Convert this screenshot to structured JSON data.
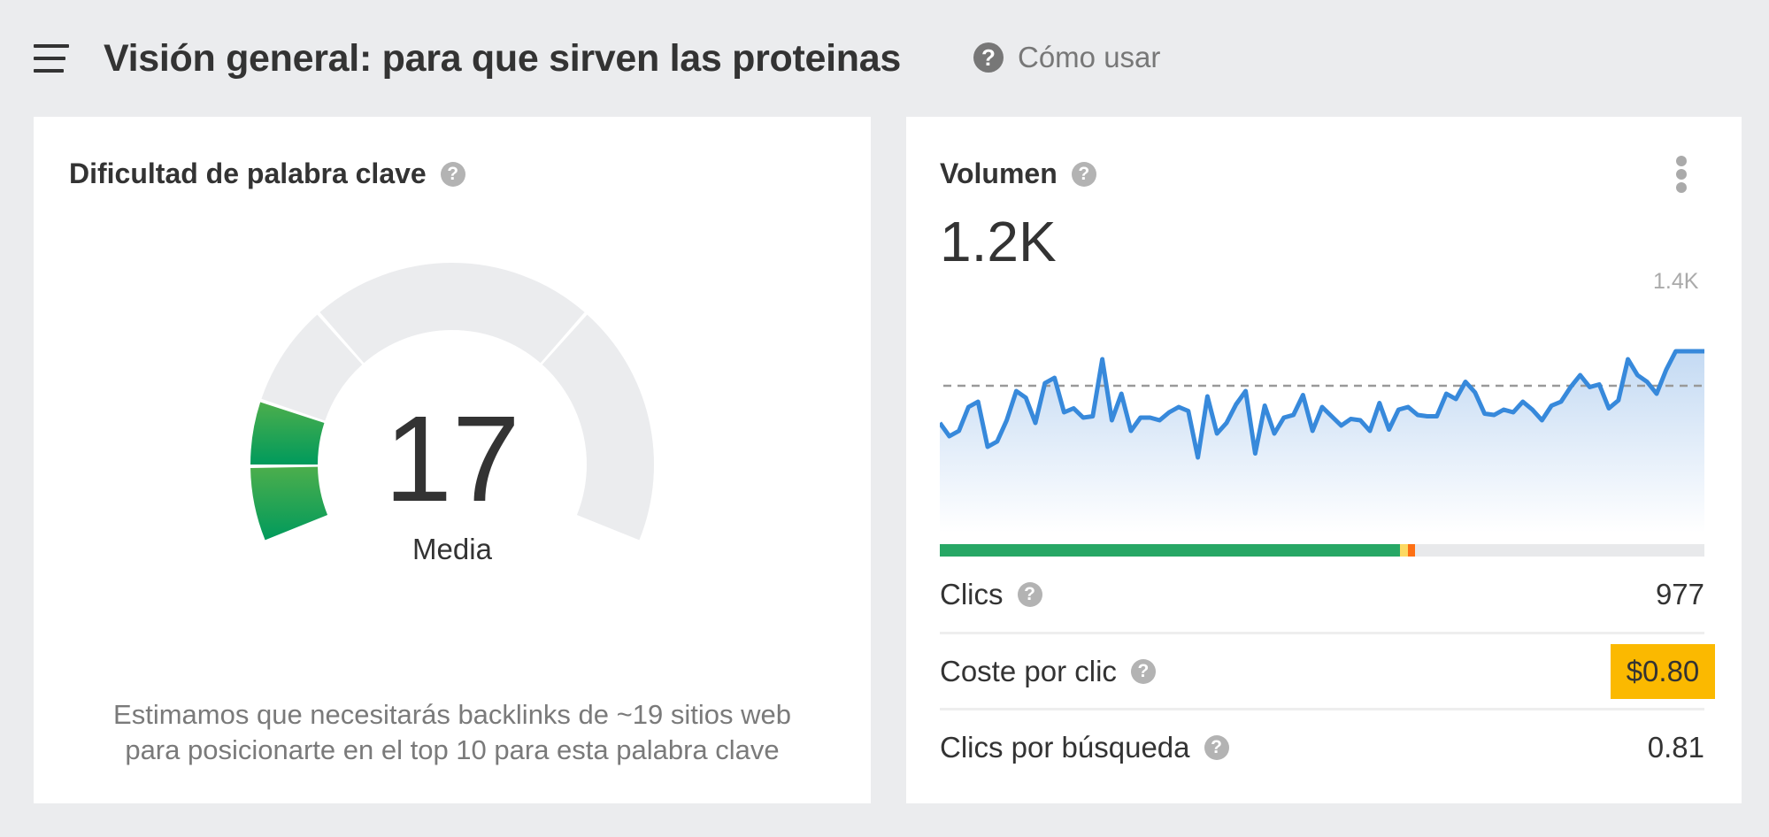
{
  "header": {
    "menu_icon": "hamburger-icon",
    "title": "Visión general: para que sirven las proteinas",
    "help_icon": "question-circle-icon",
    "help_label": "Cómo usar"
  },
  "difficulty_card": {
    "title": "Dificultad de palabra clave",
    "help_icon": "question-circle-icon",
    "score": "17",
    "score_label": "Media",
    "note_line1": "Estimamos que necesitarás backlinks de ~19 sitios web",
    "note_line2": "para posicionarte en el top 10 para esta palabra clave",
    "colors": {
      "filled_top": "#4cae4c",
      "filled_bottom": "#009a5c",
      "empty": "#ebecee"
    }
  },
  "volume_card": {
    "title": "Volumen",
    "help_icon": "question-circle-icon",
    "more_icon": "more-vertical-icon",
    "volume": "1.2K",
    "axis_max_label": "1.4K",
    "click_bar": {
      "segments": [
        {
          "name": "organic-clicks",
          "color": "#27a765",
          "percent": 60.2
        },
        {
          "name": "yellow-segment",
          "color": "#fcd962",
          "percent": 1.0
        },
        {
          "name": "orange-segment",
          "color": "#fd7014",
          "percent": 1.0
        }
      ],
      "background": "#e8e9eb"
    },
    "metrics": [
      {
        "label": "Clics",
        "value": "977",
        "has_help": true,
        "highlight": false
      },
      {
        "label": "Coste por clic",
        "value": "$0.80",
        "has_help": true,
        "highlight": true,
        "highlight_color": "#fbb900"
      },
      {
        "label": "Clics por búsqueda",
        "value": "0.81",
        "has_help": true,
        "highlight": false
      }
    ]
  },
  "chart_data": {
    "type": "area",
    "title": "Volumen",
    "xlabel": "",
    "ylabel": "",
    "y_tick_labels": [
      "1.4K"
    ],
    "reference_line": {
      "style": "dashed",
      "approx_value": 1200
    },
    "ylim": [
      0,
      1400
    ],
    "grid": false,
    "line_color": "#3789db",
    "values": [
      760,
      660,
      700,
      880,
      920,
      580,
      620,
      780,
      1000,
      950,
      760,
      1060,
      1100,
      840,
      870,
      800,
      810,
      1240,
      780,
      980,
      700,
      800,
      800,
      780,
      840,
      880,
      850,
      500,
      960,
      680,
      760,
      900,
      1000,
      530,
      890,
      680,
      800,
      820,
      970,
      700,
      880,
      810,
      740,
      790,
      780,
      700,
      910,
      710,
      860,
      880,
      820,
      810,
      810,
      980,
      940,
      1070,
      990,
      830,
      820,
      860,
      840,
      920,
      860,
      780,
      890,
      920,
      1030,
      1120,
      1030,
      1050,
      870,
      930,
      1240,
      1120,
      1070,
      980,
      1160,
      1300,
      1300,
      1300,
      1300
    ]
  }
}
